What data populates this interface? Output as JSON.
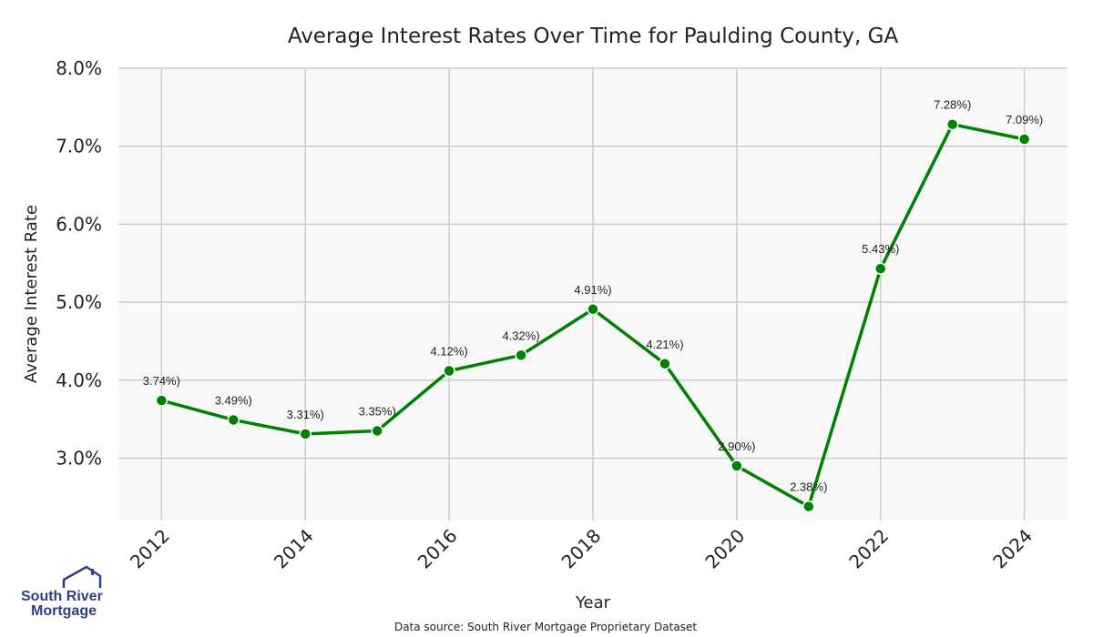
{
  "chart_data": {
    "type": "line",
    "title": "Average Interest Rates Over Time for Paulding County, GA",
    "xlabel": "Year",
    "ylabel": "Average Interest Rate",
    "x": [
      2012,
      2013,
      2014,
      2015,
      2016,
      2017,
      2018,
      2019,
      2020,
      2021,
      2022,
      2023,
      2024
    ],
    "series": [
      {
        "values": [
          3.74,
          3.49,
          3.31,
          3.35,
          4.12,
          4.32,
          4.91,
          4.21,
          2.9,
          2.38,
          5.43,
          7.28,
          7.09
        ],
        "color": "#008000"
      }
    ],
    "data_labels": [
      "3.74%)",
      "3.49%)",
      "3.31%)",
      "3.35%)",
      "4.12%)",
      "4.32%)",
      "4.91%)",
      "4.21%)",
      "2.90%)",
      "2.38%)",
      "5.43%)",
      "7.28%)",
      "7.09%)"
    ],
    "xticks": [
      2012,
      2014,
      2016,
      2018,
      2020,
      2022,
      2024
    ],
    "xtick_labels": [
      "2012",
      "2014",
      "2016",
      "2018",
      "2020",
      "2022",
      "2024"
    ],
    "yticks": [
      3.0,
      4.0,
      5.0,
      6.0,
      7.0,
      8.0
    ],
    "ytick_labels": [
      "3.0%",
      "4.0%",
      "5.0%",
      "6.0%",
      "7.0%",
      "8.0%"
    ],
    "xlim": [
      2011.4,
      2024.6
    ],
    "ylim": [
      2.2,
      8.0
    ],
    "grid": true,
    "background_color": "#f8f8f8",
    "grid_color": "#cccccc"
  },
  "source_note": "Data source: South River Mortgage Proprietary Dataset",
  "logo": {
    "line1": "South River",
    "line2": "Mortgage",
    "color": "#2f3f86"
  }
}
